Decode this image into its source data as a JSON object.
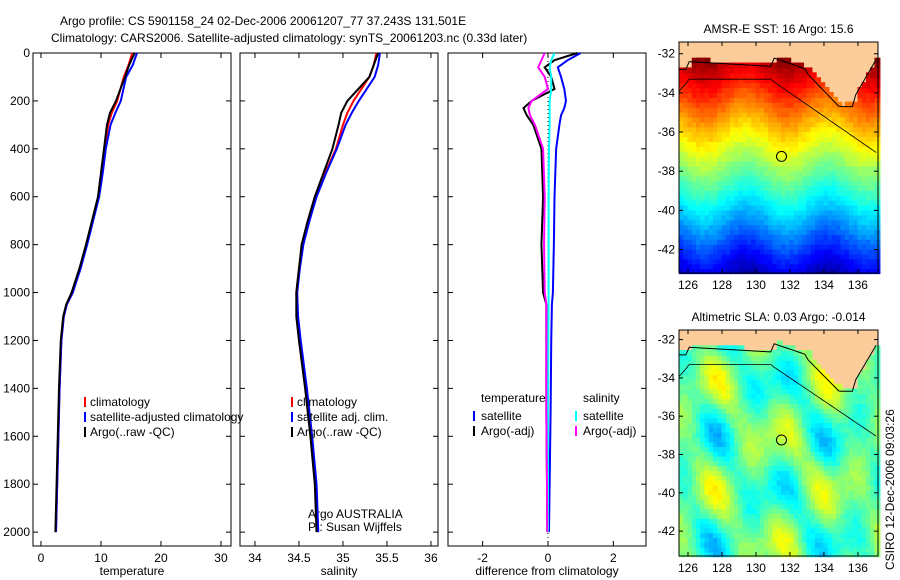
{
  "title_line1": "Argo profile: CS 5901158_24 02-Dec-2006 20061207_77 37.243S 131.501E",
  "title_line2": "Climatology: CARS2006. Satellite-adjusted climatology: synTS_20061203.nc (0.33d later)",
  "footer": "CSIRO 12-Dec-2006 09:03:26",
  "credits": {
    "line1": "Argo AUSTRALIA",
    "line2": "PI: Susan Wijffels"
  },
  "colors": {
    "climatology": "#ff0000",
    "satellite": "#0000ff",
    "argo": "#000000",
    "sat_sal": "#00ffff",
    "argo_sal": "#ff00ff",
    "land": "#fccc9a"
  },
  "chart_data": [
    {
      "type": "line",
      "xlabel": "temperature",
      "xlim": [
        -1.33,
        31.67
      ],
      "xticks": [
        0,
        10,
        20,
        30
      ],
      "ylim": [
        2058,
        0
      ],
      "yticks": [
        0,
        200,
        400,
        600,
        800,
        1000,
        1200,
        1400,
        1600,
        1800,
        2000
      ],
      "legend": [
        "climatology",
        "satellite-adjusted climatology",
        "Argo(..raw -QC)"
      ],
      "depth": [
        0,
        50,
        100,
        200,
        250,
        300,
        400,
        500,
        600,
        700,
        800,
        900,
        1000,
        1050,
        1100,
        1200,
        1400,
        1600,
        1800,
        2000
      ],
      "series": [
        {
          "name": "climatology",
          "color": "#ff0000",
          "values": [
            15.2,
            14.6,
            13.8,
            12.7,
            11.8,
            11.2,
            10.6,
            10.1,
            9.6,
            8.6,
            7.6,
            6.5,
            5.3,
            4.3,
            3.8,
            3.4,
            3.1,
            2.9,
            2.7,
            2.5
          ]
        },
        {
          "name": "satellite-adjusted climatology",
          "color": "#0000ff",
          "values": [
            16,
            15.3,
            14.2,
            13.3,
            12.4,
            11.6,
            10.8,
            10.3,
            9.7,
            8.7,
            7.7,
            6.6,
            5.3,
            4.3,
            3.8,
            3.4,
            3.1,
            2.9,
            2.7,
            2.5
          ]
        },
        {
          "name": "Argo(..raw -QC)",
          "color": "#000000",
          "values": [
            15.6,
            14.7,
            14,
            12.5,
            11.5,
            11,
            10.5,
            10,
            9.5,
            8.5,
            7.5,
            6.4,
            5.1,
            4.2,
            3.7,
            3.3,
            3,
            2.8,
            2.6,
            2.4
          ]
        }
      ]
    },
    {
      "type": "line",
      "xlabel": "salinity",
      "xlim": [
        33.83,
        36.08
      ],
      "xticks": [
        34,
        34.5,
        35,
        35.5,
        36
      ],
      "ylim": [
        2058,
        0
      ],
      "legend": [
        "climatology",
        "satellite adj. clim.",
        "Argo(..raw -QC)"
      ],
      "depth": [
        0,
        50,
        100,
        200,
        250,
        300,
        400,
        500,
        600,
        700,
        800,
        900,
        1000,
        1100,
        1200,
        1400,
        1600,
        1800,
        2000
      ],
      "series": [
        {
          "name": "climatology",
          "color": "#ff0000",
          "values": [
            35.38,
            35.35,
            35.3,
            35.12,
            35.05,
            35.0,
            34.92,
            34.8,
            34.69,
            34.61,
            34.54,
            34.5,
            34.47,
            34.48,
            34.51,
            34.58,
            34.64,
            34.69,
            34.71
          ]
        },
        {
          "name": "satellite adj. clim.",
          "color": "#0000ff",
          "values": [
            35.42,
            35.4,
            35.36,
            35.18,
            35.1,
            35.03,
            34.93,
            34.81,
            34.7,
            34.62,
            34.55,
            34.51,
            34.48,
            34.49,
            34.52,
            34.59,
            34.65,
            34.7,
            34.72
          ]
        },
        {
          "name": "Argo(..raw -QC)",
          "color": "#000000",
          "values": [
            35.4,
            35.35,
            35.3,
            35.05,
            34.98,
            34.95,
            34.88,
            34.78,
            34.68,
            34.6,
            34.53,
            34.5,
            34.47,
            34.47,
            34.5,
            34.57,
            34.63,
            34.68,
            34.7
          ]
        }
      ]
    },
    {
      "type": "line",
      "xlabel": "difference from climatology",
      "xlim": [
        -3.06,
        3.0
      ],
      "xticks": [
        -2,
        0,
        2
      ],
      "ylim": [
        2058,
        0
      ],
      "legend_temp": {
        "title": "temperature",
        "items": [
          "satellite",
          "Argo(-adj)"
        ]
      },
      "legend_sal": {
        "title": "salinity",
        "items": [
          "satellite",
          "Argo(-adj)"
        ]
      },
      "depth": [
        0,
        30,
        60,
        100,
        150,
        200,
        230,
        260,
        300,
        400,
        600,
        800,
        1000,
        1050,
        1200,
        1500,
        1800,
        2000
      ],
      "series": [
        {
          "name": "temperature satellite",
          "color": "#0000ff",
          "values": [
            1.0,
            0.6,
            0.3,
            0.4,
            0.5,
            0.55,
            0.5,
            0.4,
            0.35,
            0.25,
            0.2,
            0.18,
            0.15,
            0.12,
            0.1,
            0.08,
            0.05,
            0.03
          ]
        },
        {
          "name": "temperature Argo(-adj)",
          "color": "#000000",
          "values": [
            0.9,
            0.2,
            -0.1,
            0.1,
            0.2,
            -0.5,
            -0.75,
            -0.65,
            -0.45,
            -0.2,
            -0.15,
            -0.2,
            -0.15,
            -0.05,
            -0.05,
            -0.05,
            -0.03,
            -0.02
          ]
        },
        {
          "name": "salinity satellite",
          "color": "#00ffff",
          "values": [
            0.2,
            0.1,
            0.05,
            0.1,
            0.1,
            0.05,
            0.05,
            0.05,
            0.05,
            0.03,
            0.02,
            0.02,
            0.02,
            0.02,
            0.01,
            0.0,
            0.0,
            0.0
          ]
        },
        {
          "name": "salinity Argo(-adj)",
          "color": "#ff00ff",
          "values": [
            -0.1,
            -0.2,
            -0.3,
            -0.1,
            0.0,
            -0.5,
            -0.6,
            -0.55,
            -0.4,
            -0.15,
            -0.1,
            -0.12,
            -0.1,
            -0.05,
            -0.05,
            -0.05,
            -0.03,
            -0.02
          ]
        }
      ]
    },
    {
      "type": "heatmap",
      "title": "AMSR-E SST: 16 Argo: 15.6",
      "xlim": [
        125.47,
        137.18
      ],
      "ylim": [
        -43.2,
        -31.4
      ],
      "xticks": [
        126,
        128,
        130,
        132,
        134,
        136
      ],
      "yticks": [
        -32,
        -34,
        -36,
        -38,
        -40,
        -42
      ],
      "marker": [
        131.501,
        -37.243
      ]
    },
    {
      "type": "heatmap",
      "title": "Altimetric SLA: 0.03 Argo: -0.014",
      "xlim": [
        125.47,
        137.18
      ],
      "ylim": [
        -43.3,
        -31.5
      ],
      "xticks": [
        126,
        128,
        130,
        132,
        134,
        136
      ],
      "yticks": [
        -32,
        -34,
        -36,
        -38,
        -40,
        -42
      ],
      "marker": [
        131.501,
        -37.243
      ]
    }
  ]
}
